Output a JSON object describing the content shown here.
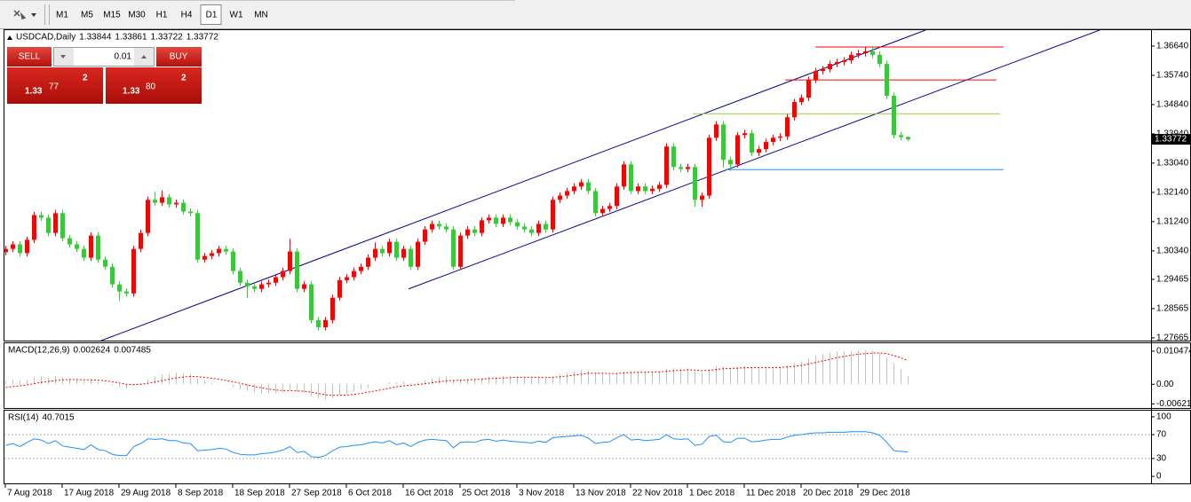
{
  "toolbar": {
    "timeframes": [
      {
        "label": "M1"
      },
      {
        "label": "M5"
      },
      {
        "label": "M15"
      },
      {
        "label": "M30"
      },
      {
        "label": "H1"
      },
      {
        "label": "H4"
      },
      {
        "label": "D1",
        "active": true
      },
      {
        "label": "W1"
      },
      {
        "label": "MN"
      }
    ]
  },
  "trade_panel": {
    "sell": "SELL",
    "buy": "BUY",
    "lot": "0.01",
    "bid": {
      "prefix": "1.33",
      "pips": "77",
      "point": "2"
    },
    "ask": {
      "prefix": "1.33",
      "pips": "80",
      "point": "2"
    }
  },
  "chart_data": [
    {
      "type": "candlestick",
      "title": "USDCAD,Daily",
      "up_color": "#ff0000",
      "down_color": "#32cd32",
      "xlim": [
        -0.75,
        161.25
      ],
      "ylim": [
        1.2758,
        1.3713
      ],
      "yticks": [
        {
          "value": 1.3664,
          "label": "1.36640"
        },
        {
          "value": 1.3574,
          "label": "1.35740"
        },
        {
          "value": 1.3484,
          "label": "1.34840"
        },
        {
          "value": 1.3394,
          "label": "1.33940"
        },
        {
          "value": 1.3304,
          "label": "1.33040"
        },
        {
          "value": 1.3214,
          "label": "1.32140"
        },
        {
          "value": 1.3124,
          "label": "1.31240"
        },
        {
          "value": 1.3034,
          "label": "1.30340"
        },
        1.29465,
        1.28565,
        1.27665
      ],
      "open": [
        1.303,
        1.304,
        1.3054,
        1.3027,
        1.3068,
        1.3144,
        1.3136,
        1.3089,
        1.315,
        1.3073,
        1.3054,
        1.304,
        1.3013,
        1.3081,
        1.3007,
        1.2985,
        1.2931,
        1.2909,
        1.2903,
        1.304,
        1.3089,
        1.3191,
        1.3182,
        1.3199,
        1.3177,
        1.3182,
        1.3155,
        1.315,
        1.3007,
        1.3018,
        1.3027,
        1.304,
        1.3032,
        1.2972,
        1.2936,
        1.2925,
        1.2917,
        1.2931,
        1.2936,
        1.2953,
        1.2972,
        1.3032,
        1.2917,
        1.2931,
        1.2821,
        1.2799,
        1.2821,
        1.289,
        1.2944,
        1.2953,
        1.2972,
        1.2985,
        1.3013,
        1.304,
        1.3027,
        1.3062,
        1.3013,
        1.304,
        1.2985,
        1.3062,
        1.31,
        1.3117,
        1.3109,
        1.31,
        1.2985,
        1.3081,
        1.31,
        1.3089,
        1.3128,
        1.3136,
        1.3117,
        1.3136,
        1.3122,
        1.3109,
        1.31,
        1.3089,
        1.3117,
        1.31,
        1.3191,
        1.3204,
        1.3218,
        1.3232,
        1.3245,
        1.3218,
        1.315,
        1.3163,
        1.3172,
        1.3232,
        1.33,
        1.3218,
        1.3232,
        1.3218,
        1.3225,
        1.3237,
        1.3355,
        1.3292,
        1.3286,
        1.3292,
        1.3191,
        1.3204,
        1.3382,
        1.3423,
        1.3314,
        1.33,
        1.339,
        1.3396,
        1.3336,
        1.3347,
        1.3369,
        1.3382,
        1.3386,
        1.3445,
        1.3492,
        1.3505,
        1.356,
        1.3587,
        1.3593,
        1.3609,
        1.3615,
        1.362,
        1.3637,
        1.3642,
        1.3648,
        1.3637,
        1.3609,
        1.3511,
        1.339,
        1.33844
      ],
      "high": [
        1.305,
        1.3064,
        1.3064,
        1.3078,
        1.3154,
        1.3154,
        1.3146,
        1.316,
        1.316,
        1.3083,
        1.3064,
        1.305,
        1.3091,
        1.3091,
        1.3017,
        1.2995,
        1.2941,
        1.2919,
        1.305,
        1.3099,
        1.3201,
        1.3215,
        1.322,
        1.3209,
        1.3192,
        1.3192,
        1.3165,
        1.316,
        1.3028,
        1.3037,
        1.305,
        1.305,
        1.3042,
        1.2982,
        1.2946,
        1.2935,
        1.2941,
        1.2946,
        1.2963,
        1.2982,
        1.3072,
        1.3042,
        1.2941,
        1.2941,
        1.2831,
        1.2831,
        1.29,
        1.2954,
        1.2963,
        1.2982,
        1.2995,
        1.3023,
        1.306,
        1.305,
        1.3072,
        1.3072,
        1.305,
        1.305,
        1.3072,
        1.311,
        1.3127,
        1.3127,
        1.3119,
        1.311,
        1.3091,
        1.311,
        1.311,
        1.3138,
        1.3146,
        1.3146,
        1.3146,
        1.3146,
        1.3132,
        1.3119,
        1.311,
        1.3127,
        1.3127,
        1.3201,
        1.3214,
        1.3228,
        1.3242,
        1.3255,
        1.3255,
        1.3228,
        1.3173,
        1.3182,
        1.3242,
        1.331,
        1.331,
        1.3242,
        1.3242,
        1.3235,
        1.3247,
        1.3365,
        1.3365,
        1.3302,
        1.3302,
        1.3302,
        1.3214,
        1.3392,
        1.3433,
        1.3433,
        1.3324,
        1.34,
        1.3406,
        1.3406,
        1.3357,
        1.3379,
        1.3392,
        1.3396,
        1.3455,
        1.3502,
        1.3515,
        1.357,
        1.3597,
        1.3603,
        1.3619,
        1.3625,
        1.363,
        1.3647,
        1.3652,
        1.366,
        1.3664,
        1.3647,
        1.3619,
        1.3521,
        1.34,
        1.33861
      ],
      "low": [
        1.302,
        1.303,
        1.3017,
        1.3017,
        1.3058,
        1.3126,
        1.3079,
        1.3079,
        1.3063,
        1.3044,
        1.303,
        1.3003,
        1.3003,
        1.2997,
        1.2975,
        1.2921,
        1.288,
        1.2893,
        1.2893,
        1.303,
        1.3079,
        1.3172,
        1.3172,
        1.3167,
        1.3167,
        1.3145,
        1.314,
        1.2997,
        1.2997,
        1.3008,
        1.3017,
        1.3022,
        1.2962,
        1.2926,
        1.289,
        1.2907,
        1.2907,
        1.2921,
        1.2926,
        1.2943,
        1.2962,
        1.2907,
        1.2907,
        1.2811,
        1.2789,
        1.2789,
        1.2811,
        1.288,
        1.2934,
        1.2943,
        1.2962,
        1.2975,
        1.3003,
        1.3017,
        1.3017,
        1.3003,
        1.3003,
        1.2975,
        1.2975,
        1.3052,
        1.309,
        1.3099,
        1.309,
        1.2975,
        1.2975,
        1.3071,
        1.3079,
        1.3079,
        1.3118,
        1.3107,
        1.3107,
        1.3112,
        1.3099,
        1.309,
        1.3079,
        1.3079,
        1.309,
        1.309,
        1.3181,
        1.3194,
        1.3208,
        1.3222,
        1.3208,
        1.314,
        1.314,
        1.3153,
        1.3162,
        1.3222,
        1.3208,
        1.3208,
        1.3208,
        1.3208,
        1.3215,
        1.3227,
        1.3282,
        1.3276,
        1.3276,
        1.317,
        1.317,
        1.3194,
        1.3372,
        1.329,
        1.328,
        1.329,
        1.338,
        1.3326,
        1.3326,
        1.3337,
        1.3359,
        1.3372,
        1.3376,
        1.3435,
        1.3482,
        1.3495,
        1.355,
        1.3577,
        1.3583,
        1.3599,
        1.3605,
        1.361,
        1.3627,
        1.3632,
        1.3627,
        1.3599,
        1.3501,
        1.338,
        1.3374,
        1.33722
      ],
      "close": [
        1.304,
        1.3054,
        1.3027,
        1.3068,
        1.3144,
        1.3136,
        1.3089,
        1.315,
        1.3073,
        1.3054,
        1.304,
        1.3013,
        1.3081,
        1.3007,
        1.2985,
        1.2931,
        1.2909,
        1.2903,
        1.304,
        1.3089,
        1.3191,
        1.3182,
        1.3199,
        1.3177,
        1.3182,
        1.3155,
        1.315,
        1.3007,
        1.3018,
        1.3027,
        1.304,
        1.3032,
        1.2972,
        1.2936,
        1.2925,
        1.2917,
        1.2931,
        1.2936,
        1.2953,
        1.2972,
        1.3032,
        1.2917,
        1.2931,
        1.2821,
        1.2799,
        1.2821,
        1.289,
        1.2944,
        1.2953,
        1.2972,
        1.2985,
        1.3013,
        1.304,
        1.3027,
        1.3062,
        1.3013,
        1.304,
        1.2985,
        1.3062,
        1.31,
        1.3117,
        1.3109,
        1.31,
        1.2985,
        1.3081,
        1.31,
        1.3089,
        1.3128,
        1.3136,
        1.3117,
        1.3136,
        1.3122,
        1.3109,
        1.31,
        1.3089,
        1.3117,
        1.31,
        1.3191,
        1.3204,
        1.3218,
        1.3232,
        1.3245,
        1.3218,
        1.315,
        1.3163,
        1.3172,
        1.3232,
        1.33,
        1.3218,
        1.3232,
        1.3218,
        1.3225,
        1.3237,
        1.3355,
        1.3292,
        1.3286,
        1.3292,
        1.3191,
        1.3204,
        1.3382,
        1.3423,
        1.3314,
        1.33,
        1.339,
        1.3396,
        1.3336,
        1.3347,
        1.3369,
        1.3382,
        1.3386,
        1.3445,
        1.3492,
        1.3505,
        1.356,
        1.3587,
        1.3593,
        1.3609,
        1.3615,
        1.362,
        1.3637,
        1.3642,
        1.3648,
        1.3637,
        1.3609,
        1.3511,
        1.339,
        1.3384,
        1.33772
      ],
      "lines": [
        {
          "x": [
            13.5,
            129.5
          ],
          "y": [
            1.2758,
            1.3713
          ],
          "color": "#00008b"
        },
        {
          "x": [
            56.75,
            154
          ],
          "y": [
            1.2917,
            1.3713
          ],
          "color": "#00008b"
        },
        {
          "x": [
            114,
            140.5
          ],
          "y": [
            1.3661,
            1.3661
          ],
          "color": "#ff0000"
        },
        {
          "x": [
            109.75,
            139.5
          ],
          "y": [
            1.356,
            1.356
          ],
          "color": "#ff0000"
        },
        {
          "x": [
            96.75,
            140
          ],
          "y": [
            1.3456,
            1.3456
          ],
          "color": "#9acd32"
        },
        {
          "x": [
            101.5,
            140.5
          ],
          "y": [
            1.3284,
            1.3284
          ],
          "color": "#1e90ff"
        }
      ]
    },
    {
      "type": "macd",
      "title": "MACD(12,26,9)",
      "histogram_color": "#c0c0c0",
      "signal_color": "#ff0000",
      "xlim": [
        -0.75,
        161.25
      ],
      "ylim": [
        -0.0075,
        0.0127
      ],
      "yticks": [
        0.010474,
        {
          "value": 0,
          "label": "0.00"
        },
        -0.006218
      ],
      "histogram": [
        0.0012,
        0.0014,
        0.0012,
        0.0015,
        0.0022,
        0.0025,
        0.0022,
        0.0026,
        0.0021,
        0.0017,
        0.0013,
        0.0009,
        0.0013,
        0.0008,
        0.0003,
        -0.0004,
        -0.001,
        -0.0014,
        -0.0005,
        0.0004,
        0.0016,
        0.0024,
        0.0031,
        0.0034,
        0.0036,
        0.0035,
        0.0033,
        0.002,
        0.0011,
        0.0005,
        0.0002,
        -0.0002,
        -0.0009,
        -0.0016,
        -0.0022,
        -0.0027,
        -0.0029,
        -0.003,
        -0.0029,
        -0.0027,
        -0.0019,
        -0.0024,
        -0.0026,
        -0.0036,
        -0.0045,
        -0.0048,
        -0.0044,
        -0.0036,
        -0.003,
        -0.0023,
        -0.0017,
        -0.001,
        -0.0003,
        0.0001,
        0.0006,
        0.0006,
        0.0008,
        0.0003,
        0.0007,
        0.0013,
        0.0019,
        0.0022,
        0.0024,
        0.0014,
        0.0015,
        0.0017,
        0.0018,
        0.0021,
        0.0024,
        0.0024,
        0.0025,
        0.0025,
        0.0024,
        0.0022,
        0.002,
        0.0021,
        0.0019,
        0.0025,
        0.0031,
        0.0036,
        0.0041,
        0.0045,
        0.0044,
        0.0037,
        0.0033,
        0.0031,
        0.0035,
        0.0042,
        0.0041,
        0.0041,
        0.004,
        0.004,
        0.004,
        0.0049,
        0.0051,
        0.0051,
        0.0051,
        0.0042,
        0.0036,
        0.0047,
        0.0058,
        0.0056,
        0.0052,
        0.0056,
        0.0058,
        0.0055,
        0.0053,
        0.0053,
        0.0054,
        0.0055,
        0.006,
        0.0067,
        0.0073,
        0.0082,
        0.009,
        0.0096,
        0.01,
        0.0103,
        0.0104,
        0.0106,
        0.0107,
        0.0107,
        0.0105,
        0.01,
        0.0087,
        0.0066,
        0.0046,
        0.002624
      ],
      "signal": [
        -0.001,
        -0.0007,
        -0.0005,
        -0.0002,
        0.0002,
        0.0006,
        0.0009,
        0.0012,
        0.0014,
        0.0015,
        0.0015,
        0.0014,
        0.0014,
        0.0013,
        0.0011,
        0.0008,
        0.0004,
        0.0,
        -0.0001,
        0.0,
        0.0003,
        0.0007,
        0.0012,
        0.0016,
        0.002,
        0.0023,
        0.0025,
        0.0024,
        0.0022,
        0.0019,
        0.0016,
        0.0012,
        0.0008,
        0.0003,
        -0.0002,
        -0.0007,
        -0.0011,
        -0.0015,
        -0.0018,
        -0.002,
        -0.002,
        -0.0021,
        -0.0022,
        -0.0025,
        -0.0029,
        -0.0033,
        -0.0035,
        -0.0035,
        -0.0034,
        -0.0032,
        -0.0029,
        -0.0025,
        -0.0021,
        -0.0017,
        -0.0012,
        -0.0008,
        -0.0005,
        -0.0003,
        -0.0001,
        0.0002,
        0.0005,
        0.0008,
        0.0011,
        0.0012,
        0.0013,
        0.0014,
        0.0015,
        0.0016,
        0.0018,
        0.0019,
        0.002,
        0.0021,
        0.0022,
        0.0022,
        0.0022,
        0.0022,
        0.0021,
        0.0022,
        0.0024,
        0.0026,
        0.0029,
        0.0032,
        0.0035,
        0.0035,
        0.0035,
        0.0034,
        0.0034,
        0.0036,
        0.0037,
        0.0038,
        0.0038,
        0.0039,
        0.0039,
        0.0041,
        0.0043,
        0.0044,
        0.0046,
        0.0045,
        0.0043,
        0.0044,
        0.0047,
        0.0049,
        0.005,
        0.0051,
        0.0052,
        0.0053,
        0.0053,
        0.0053,
        0.0053,
        0.0053,
        0.0055,
        0.0057,
        0.006,
        0.0064,
        0.0069,
        0.0074,
        0.0079,
        0.0084,
        0.0088,
        0.0092,
        0.0095,
        0.0097,
        0.0099,
        0.0099,
        0.0097,
        0.0091,
        0.0083,
        0.007485
      ]
    },
    {
      "type": "line",
      "title": "RSI(14)",
      "color": "#1e90ff",
      "xlim": [
        -0.75,
        161.25
      ],
      "ylim": [
        -11.8,
        108.8
      ],
      "yticks": [
        100,
        70,
        30,
        0
      ],
      "levels": [
        70,
        30
      ],
      "values": [
        52,
        55,
        50,
        57,
        63,
        61,
        55,
        60,
        51,
        49,
        47,
        45,
        53,
        45,
        43,
        37,
        35,
        35,
        50,
        55,
        63,
        62,
        63,
        60,
        60,
        56,
        55,
        43,
        44,
        45,
        47,
        46,
        40,
        37,
        36,
        36,
        38,
        39,
        41,
        44,
        50,
        40,
        42,
        33,
        32,
        35,
        43,
        49,
        50,
        52,
        53,
        56,
        58,
        56,
        60,
        53,
        56,
        50,
        57,
        61,
        62,
        61,
        60,
        48,
        57,
        58,
        57,
        61,
        62,
        59,
        61,
        59,
        58,
        57,
        56,
        59,
        57,
        65,
        66,
        67,
        68,
        69,
        64,
        55,
        57,
        58,
        65,
        70,
        61,
        62,
        60,
        61,
        62,
        70,
        63,
        62,
        63,
        52,
        54,
        67,
        69,
        58,
        57,
        64,
        64,
        58,
        59,
        61,
        62,
        62,
        66,
        69,
        70,
        72,
        73,
        73,
        74,
        74,
        74,
        75,
        75,
        75,
        73,
        69,
        57,
        43,
        42,
        40.7015
      ],
      "xticks": [
        {
          "value": 0,
          "label": "7 Aug 2018"
        },
        {
          "value": 8,
          "label": "17 Aug 2018"
        },
        {
          "value": 16,
          "label": "29 Aug 2018"
        },
        {
          "value": 24,
          "label": "8 Sep 2018"
        },
        {
          "value": 32,
          "label": "18 Sep 2018"
        },
        {
          "value": 40,
          "label": "27 Sep 2018"
        },
        {
          "value": 48,
          "label": "6 Oct 2018"
        },
        {
          "value": 56,
          "label": "16 Oct 2018"
        },
        {
          "value": 64,
          "label": "25 Oct 2018"
        },
        {
          "value": 72,
          "label": "3 Nov 2018"
        },
        {
          "value": 80,
          "label": "13 Nov 2018"
        },
        {
          "value": 88,
          "label": "22 Nov 2018"
        },
        {
          "value": 96,
          "label": "1 Dec 2018"
        },
        {
          "value": 104,
          "label": "11 Dec 2018"
        },
        {
          "value": 112,
          "label": "20 Dec 2018"
        },
        {
          "value": 120,
          "label": "29 Dec 2018"
        }
      ]
    }
  ]
}
